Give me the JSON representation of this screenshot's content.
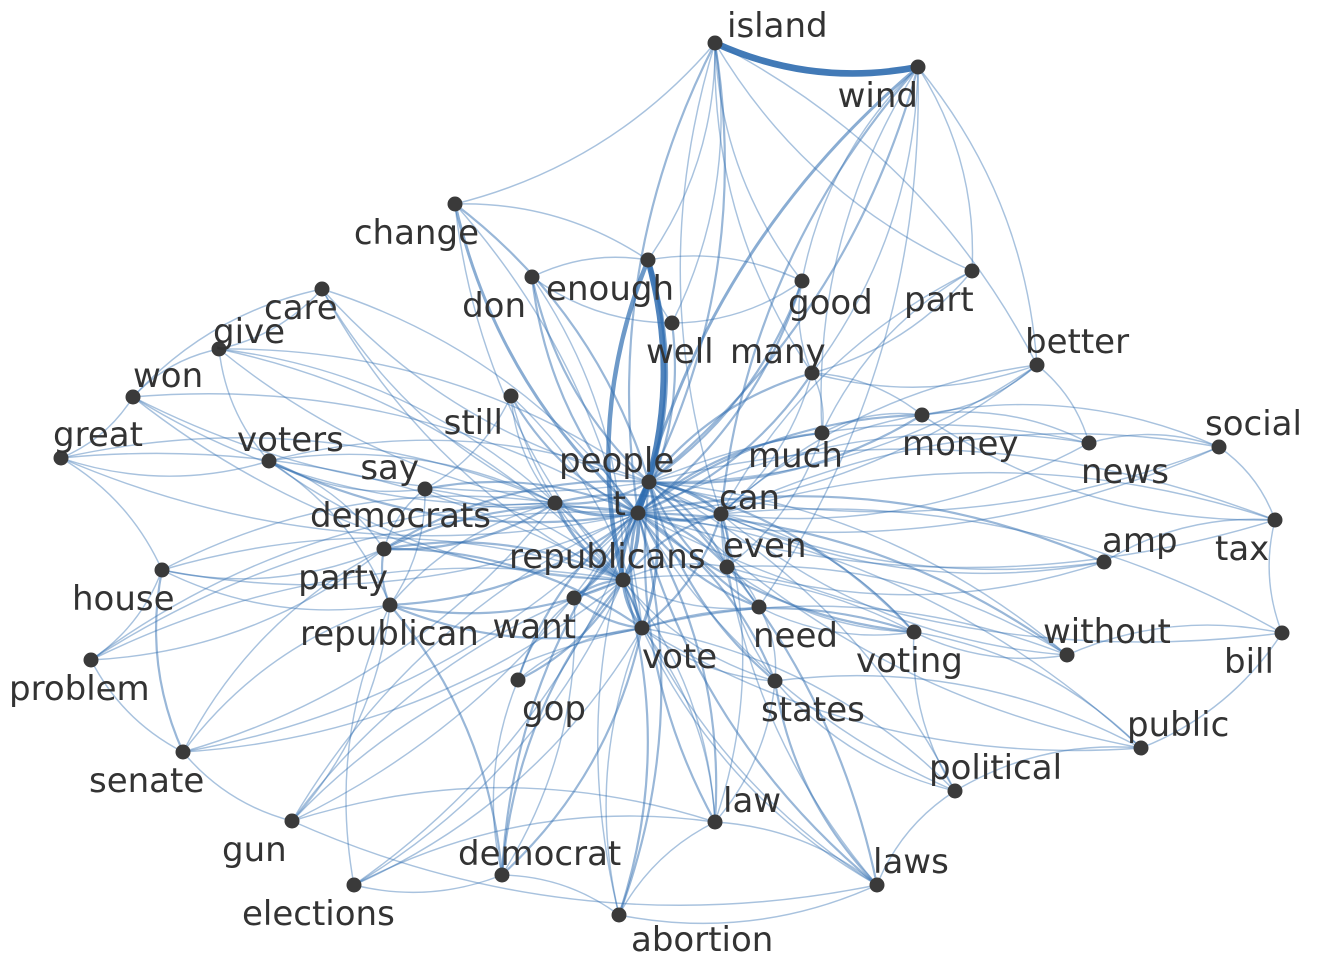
{
  "palette": {
    "edge": "#2f6db0",
    "node": "#3a3a3a",
    "label": "#333333",
    "background": "#ffffff"
  },
  "nodes": [
    {
      "id": "island",
      "label": "island"
    },
    {
      "id": "wind",
      "label": "wind"
    },
    {
      "id": "change",
      "label": "change"
    },
    {
      "id": "enough",
      "label": "enough"
    },
    {
      "id": "don",
      "label": "don"
    },
    {
      "id": "good",
      "label": "good"
    },
    {
      "id": "part",
      "label": "part"
    },
    {
      "id": "care",
      "label": "care"
    },
    {
      "id": "well",
      "label": "well"
    },
    {
      "id": "give",
      "label": "give"
    },
    {
      "id": "many",
      "label": "many"
    },
    {
      "id": "better",
      "label": "better"
    },
    {
      "id": "won",
      "label": "won"
    },
    {
      "id": "still",
      "label": "still"
    },
    {
      "id": "money",
      "label": "money"
    },
    {
      "id": "social",
      "label": "social"
    },
    {
      "id": "great",
      "label": "great"
    },
    {
      "id": "voters",
      "label": "voters"
    },
    {
      "id": "much",
      "label": "much"
    },
    {
      "id": "news",
      "label": "news"
    },
    {
      "id": "say",
      "label": "say"
    },
    {
      "id": "people",
      "label": "people"
    },
    {
      "id": "democrats",
      "label": "democrats"
    },
    {
      "id": "t",
      "label": "t"
    },
    {
      "id": "can",
      "label": "can"
    },
    {
      "id": "tax",
      "label": "tax"
    },
    {
      "id": "amp",
      "label": "amp"
    },
    {
      "id": "even",
      "label": "even"
    },
    {
      "id": "party",
      "label": "party"
    },
    {
      "id": "republicans",
      "label": "republicans"
    },
    {
      "id": "house",
      "label": "house"
    },
    {
      "id": "republican",
      "label": "republican"
    },
    {
      "id": "want",
      "label": "want"
    },
    {
      "id": "need",
      "label": "need"
    },
    {
      "id": "voting",
      "label": "voting"
    },
    {
      "id": "without",
      "label": "without"
    },
    {
      "id": "bill",
      "label": "bill"
    },
    {
      "id": "vote",
      "label": "vote"
    },
    {
      "id": "problem",
      "label": "problem"
    },
    {
      "id": "gop",
      "label": "gop"
    },
    {
      "id": "states",
      "label": "states"
    },
    {
      "id": "public",
      "label": "public"
    },
    {
      "id": "political",
      "label": "political"
    },
    {
      "id": "senate",
      "label": "senate"
    },
    {
      "id": "law",
      "label": "law"
    },
    {
      "id": "gun",
      "label": "gun"
    },
    {
      "id": "democrat",
      "label": "democrat"
    },
    {
      "id": "laws",
      "label": "laws"
    },
    {
      "id": "elections",
      "label": "elections"
    },
    {
      "id": "abortion",
      "label": "abortion"
    }
  ],
  "edges": [
    {
      "s": "island",
      "t": "wind",
      "w": 8
    },
    {
      "s": "enough",
      "t": "t",
      "w": 7
    },
    {
      "s": "enough",
      "t": "republicans",
      "w": 5
    },
    {
      "s": "enough",
      "t": "people",
      "w": 4
    },
    {
      "s": "change",
      "t": "t",
      "w": 3
    },
    {
      "s": "change",
      "t": "people",
      "w": 2
    },
    {
      "s": "wind",
      "t": "t",
      "w": 3
    },
    {
      "s": "wind",
      "t": "people",
      "w": 2
    },
    {
      "s": "island",
      "t": "t",
      "w": 2
    },
    {
      "s": "island",
      "t": "people",
      "w": 2
    },
    {
      "s": "island",
      "t": "part",
      "w": 1
    },
    {
      "s": "wind",
      "t": "part",
      "w": 1
    },
    {
      "s": "people",
      "t": "t",
      "w": 4
    },
    {
      "s": "people",
      "t": "can",
      "w": 3
    },
    {
      "s": "t",
      "t": "can",
      "w": 3
    },
    {
      "s": "t",
      "t": "republicans",
      "w": 4
    },
    {
      "s": "t",
      "t": "vote",
      "w": 3
    },
    {
      "s": "people",
      "t": "vote",
      "w": 3
    },
    {
      "s": "republicans",
      "t": "vote",
      "w": 3
    },
    {
      "s": "t",
      "t": "democrats",
      "w": 3
    },
    {
      "s": "t",
      "t": "party",
      "w": 2
    },
    {
      "s": "t",
      "t": "republican",
      "w": 2
    },
    {
      "s": "democrats",
      "t": "republicans",
      "w": 3
    },
    {
      "s": "t",
      "t": "even",
      "w": 2
    },
    {
      "s": "t",
      "t": "need",
      "w": 2
    },
    {
      "s": "t",
      "t": "want",
      "w": 2
    },
    {
      "s": "t",
      "t": "gop",
      "w": 2
    },
    {
      "s": "t",
      "t": "states",
      "w": 2
    },
    {
      "s": "t",
      "t": "voting",
      "w": 2
    },
    {
      "s": "t",
      "t": "much",
      "w": 2
    },
    {
      "s": "t",
      "t": "many",
      "w": 2
    },
    {
      "s": "t",
      "t": "money",
      "w": 2
    },
    {
      "s": "t",
      "t": "well",
      "w": 2
    },
    {
      "s": "t",
      "t": "don",
      "w": 2
    },
    {
      "s": "t",
      "t": "good",
      "w": 2
    },
    {
      "s": "t",
      "t": "still",
      "w": 2
    },
    {
      "s": "t",
      "t": "say",
      "w": 2
    },
    {
      "s": "t",
      "t": "voters",
      "w": 2
    },
    {
      "s": "t",
      "t": "care",
      "w": 1
    },
    {
      "s": "t",
      "t": "give",
      "w": 1
    },
    {
      "s": "t",
      "t": "won",
      "w": 1
    },
    {
      "s": "t",
      "t": "great",
      "w": 1
    },
    {
      "s": "t",
      "t": "better",
      "w": 1
    },
    {
      "s": "t",
      "t": "news",
      "w": 1
    },
    {
      "s": "t",
      "t": "social",
      "w": 1
    },
    {
      "s": "t",
      "t": "amp",
      "w": 2
    },
    {
      "s": "t",
      "t": "tax",
      "w": 1
    },
    {
      "s": "t",
      "t": "without",
      "w": 2
    },
    {
      "s": "t",
      "t": "bill",
      "w": 1
    },
    {
      "s": "t",
      "t": "public",
      "w": 1
    },
    {
      "s": "t",
      "t": "political",
      "w": 1
    },
    {
      "s": "t",
      "t": "law",
      "w": 2
    },
    {
      "s": "t",
      "t": "laws",
      "w": 2
    },
    {
      "s": "t",
      "t": "abortion",
      "w": 2
    },
    {
      "s": "t",
      "t": "democrat",
      "w": 2
    },
    {
      "s": "t",
      "t": "elections",
      "w": 1
    },
    {
      "s": "t",
      "t": "gun",
      "w": 1
    },
    {
      "s": "t",
      "t": "senate",
      "w": 1
    },
    {
      "s": "t",
      "t": "problem",
      "w": 1
    },
    {
      "s": "t",
      "t": "house",
      "w": 1
    },
    {
      "s": "people",
      "t": "republicans",
      "w": 3
    },
    {
      "s": "people",
      "t": "democrats",
      "w": 2
    },
    {
      "s": "people",
      "t": "party",
      "w": 2
    },
    {
      "s": "people",
      "t": "even",
      "w": 2
    },
    {
      "s": "people",
      "t": "need",
      "w": 2
    },
    {
      "s": "people",
      "t": "want",
      "w": 2
    },
    {
      "s": "people",
      "t": "states",
      "w": 2
    },
    {
      "s": "people",
      "t": "voting",
      "w": 2
    },
    {
      "s": "people",
      "t": "money",
      "w": 2
    },
    {
      "s": "people",
      "t": "many",
      "w": 2
    },
    {
      "s": "people",
      "t": "good",
      "w": 2
    },
    {
      "s": "people",
      "t": "don",
      "w": 2
    },
    {
      "s": "people",
      "t": "law",
      "w": 2
    },
    {
      "s": "people",
      "t": "laws",
      "w": 2
    },
    {
      "s": "people",
      "t": "abortion",
      "w": 1
    },
    {
      "s": "people",
      "t": "gun",
      "w": 1
    },
    {
      "s": "people",
      "t": "voters",
      "w": 1
    },
    {
      "s": "people",
      "t": "care",
      "w": 1
    },
    {
      "s": "people",
      "t": "give",
      "w": 1
    },
    {
      "s": "people",
      "t": "won",
      "w": 1
    },
    {
      "s": "people",
      "t": "amp",
      "w": 1
    },
    {
      "s": "people",
      "t": "without",
      "w": 1
    },
    {
      "s": "people",
      "t": "public",
      "w": 1
    },
    {
      "s": "people",
      "t": "political",
      "w": 1
    },
    {
      "s": "people",
      "t": "better",
      "w": 1
    },
    {
      "s": "people",
      "t": "news",
      "w": 1
    },
    {
      "s": "people",
      "t": "social",
      "w": 1
    },
    {
      "s": "people",
      "t": "tax",
      "w": 1
    },
    {
      "s": "can",
      "t": "republicans",
      "w": 2
    },
    {
      "s": "can",
      "t": "vote",
      "w": 2
    },
    {
      "s": "can",
      "t": "democrats",
      "w": 2
    },
    {
      "s": "can",
      "t": "even",
      "w": 2
    },
    {
      "s": "can",
      "t": "need",
      "w": 1
    },
    {
      "s": "can",
      "t": "voting",
      "w": 1
    },
    {
      "s": "can",
      "t": "states",
      "w": 1
    },
    {
      "s": "can",
      "t": "money",
      "w": 1
    },
    {
      "s": "can",
      "t": "many",
      "w": 1
    },
    {
      "s": "can",
      "t": "better",
      "w": 1
    },
    {
      "s": "can",
      "t": "news",
      "w": 1
    },
    {
      "s": "can",
      "t": "social",
      "w": 1
    },
    {
      "s": "can",
      "t": "amp",
      "w": 1
    },
    {
      "s": "can",
      "t": "tax",
      "w": 1
    },
    {
      "s": "can",
      "t": "without",
      "w": 1
    },
    {
      "s": "can",
      "t": "bill",
      "w": 1
    },
    {
      "s": "can",
      "t": "laws",
      "w": 1
    },
    {
      "s": "can",
      "t": "law",
      "w": 1
    },
    {
      "s": "republicans",
      "t": "party",
      "w": 2
    },
    {
      "s": "republicans",
      "t": "republican",
      "w": 2
    },
    {
      "s": "republicans",
      "t": "want",
      "w": 2
    },
    {
      "s": "republicans",
      "t": "gop",
      "w": 2
    },
    {
      "s": "republicans",
      "t": "democrat",
      "w": 2
    },
    {
      "s": "republicans",
      "t": "abortion",
      "w": 2
    },
    {
      "s": "republicans",
      "t": "states",
      "w": 1
    },
    {
      "s": "republicans",
      "t": "voting",
      "w": 1
    },
    {
      "s": "republicans",
      "t": "need",
      "w": 1
    },
    {
      "s": "republicans",
      "t": "even",
      "w": 1
    },
    {
      "s": "republicans",
      "t": "house",
      "w": 1
    },
    {
      "s": "republicans",
      "t": "senate",
      "w": 1
    },
    {
      "s": "republicans",
      "t": "gun",
      "w": 1
    },
    {
      "s": "republicans",
      "t": "elections",
      "w": 1
    },
    {
      "s": "republicans",
      "t": "problem",
      "w": 1
    },
    {
      "s": "republicans",
      "t": "voters",
      "w": 1
    },
    {
      "s": "republicans",
      "t": "say",
      "w": 1
    },
    {
      "s": "republicans",
      "t": "still",
      "w": 1
    },
    {
      "s": "republicans",
      "t": "don",
      "w": 1
    },
    {
      "s": "republicans",
      "t": "care",
      "w": 1
    },
    {
      "s": "republicans",
      "t": "give",
      "w": 1
    },
    {
      "s": "republicans",
      "t": "won",
      "w": 1
    },
    {
      "s": "republicans",
      "t": "great",
      "w": 1
    },
    {
      "s": "republicans",
      "t": "law",
      "w": 1
    },
    {
      "s": "republicans",
      "t": "laws",
      "w": 1
    },
    {
      "s": "democrats",
      "t": "party",
      "w": 2
    },
    {
      "s": "democrats",
      "t": "republican",
      "w": 1
    },
    {
      "s": "democrats",
      "t": "vote",
      "w": 2
    },
    {
      "s": "democrats",
      "t": "voters",
      "w": 1
    },
    {
      "s": "democrats",
      "t": "say",
      "w": 1
    },
    {
      "s": "democrats",
      "t": "house",
      "w": 1
    },
    {
      "s": "democrats",
      "t": "senate",
      "w": 1
    },
    {
      "s": "democrats",
      "t": "give",
      "w": 1
    },
    {
      "s": "democrats",
      "t": "won",
      "w": 1
    },
    {
      "s": "democrats",
      "t": "great",
      "w": 1
    },
    {
      "s": "democrats",
      "t": "care",
      "w": 1
    },
    {
      "s": "democrats",
      "t": "problem",
      "w": 1
    },
    {
      "s": "vote",
      "t": "voting",
      "w": 2
    },
    {
      "s": "vote",
      "t": "states",
      "w": 1
    },
    {
      "s": "vote",
      "t": "want",
      "w": 2
    },
    {
      "s": "vote",
      "t": "party",
      "w": 2
    },
    {
      "s": "vote",
      "t": "republican",
      "w": 2
    },
    {
      "s": "vote",
      "t": "gop",
      "w": 1
    },
    {
      "s": "vote",
      "t": "democrat",
      "w": 2
    },
    {
      "s": "vote",
      "t": "abortion",
      "w": 1
    },
    {
      "s": "vote",
      "t": "law",
      "w": 1
    },
    {
      "s": "vote",
      "t": "laws",
      "w": 1
    },
    {
      "s": "vote",
      "t": "elections",
      "w": 1
    },
    {
      "s": "vote",
      "t": "gun",
      "w": 1
    },
    {
      "s": "vote",
      "t": "without",
      "w": 1
    },
    {
      "s": "vote",
      "t": "public",
      "w": 1
    },
    {
      "s": "vote",
      "t": "political",
      "w": 1
    },
    {
      "s": "party",
      "t": "republican",
      "w": 2
    },
    {
      "s": "party",
      "t": "house",
      "w": 1
    },
    {
      "s": "party",
      "t": "senate",
      "w": 1
    },
    {
      "s": "party",
      "t": "problem",
      "w": 1
    },
    {
      "s": "party",
      "t": "voters",
      "w": 1
    },
    {
      "s": "republican",
      "t": "democrat",
      "w": 2
    },
    {
      "s": "republican",
      "t": "senate",
      "w": 1
    },
    {
      "s": "republican",
      "t": "gun",
      "w": 1
    },
    {
      "s": "republican",
      "t": "elections",
      "w": 1
    },
    {
      "s": "republican",
      "t": "house",
      "w": 1
    },
    {
      "s": "want",
      "t": "gop",
      "w": 1
    },
    {
      "s": "want",
      "t": "democrat",
      "w": 1
    },
    {
      "s": "gop",
      "t": "democrat",
      "w": 1
    },
    {
      "s": "even",
      "t": "need",
      "w": 1
    },
    {
      "s": "even",
      "t": "amp",
      "w": 1
    },
    {
      "s": "even",
      "t": "without",
      "w": 1
    },
    {
      "s": "need",
      "t": "voting",
      "w": 1
    },
    {
      "s": "need",
      "t": "states",
      "w": 1
    },
    {
      "s": "states",
      "t": "laws",
      "w": 2
    },
    {
      "s": "states",
      "t": "law",
      "w": 1
    },
    {
      "s": "states",
      "t": "political",
      "w": 1
    },
    {
      "s": "states",
      "t": "public",
      "w": 1
    },
    {
      "s": "voting",
      "t": "without",
      "w": 1
    },
    {
      "s": "voting",
      "t": "public",
      "w": 1
    },
    {
      "s": "voting",
      "t": "political",
      "w": 1
    },
    {
      "s": "law",
      "t": "laws",
      "w": 1
    },
    {
      "s": "house",
      "t": "senate",
      "w": 2
    },
    {
      "s": "house",
      "t": "problem",
      "w": 1
    },
    {
      "s": "voters",
      "t": "say",
      "w": 1
    },
    {
      "s": "voters",
      "t": "republican",
      "w": 1
    },
    {
      "s": "money",
      "t": "many",
      "w": 1
    },
    {
      "s": "money",
      "t": "news",
      "w": 1
    },
    {
      "s": "money",
      "t": "better",
      "w": 1
    },
    {
      "s": "money",
      "t": "social",
      "w": 1
    },
    {
      "s": "money",
      "t": "tax",
      "w": 1
    },
    {
      "s": "much",
      "t": "money",
      "w": 1
    },
    {
      "s": "much",
      "t": "many",
      "w": 1
    },
    {
      "s": "news",
      "t": "social",
      "w": 1
    },
    {
      "s": "news",
      "t": "better",
      "w": 1
    },
    {
      "s": "amp",
      "t": "tax",
      "w": 1
    },
    {
      "s": "tax",
      "t": "bill",
      "w": 1
    },
    {
      "s": "social",
      "t": "tax",
      "w": 1
    },
    {
      "s": "good",
      "t": "many",
      "w": 1
    },
    {
      "s": "good",
      "t": "well",
      "w": 1
    },
    {
      "s": "good",
      "t": "enough",
      "w": 1
    },
    {
      "s": "don",
      "t": "enough",
      "w": 1
    },
    {
      "s": "don",
      "t": "well",
      "w": 1
    },
    {
      "s": "care",
      "t": "give",
      "w": 1
    },
    {
      "s": "give",
      "t": "won",
      "w": 1
    },
    {
      "s": "won",
      "t": "great",
      "w": 1
    },
    {
      "s": "care",
      "t": "won",
      "w": 1
    },
    {
      "s": "island",
      "t": "enough",
      "w": 1
    },
    {
      "s": "island",
      "t": "good",
      "w": 1
    },
    {
      "s": "island",
      "t": "well",
      "w": 1
    },
    {
      "s": "island",
      "t": "many",
      "w": 1
    },
    {
      "s": "island",
      "t": "change",
      "w": 1
    },
    {
      "s": "island",
      "t": "can",
      "w": 1
    },
    {
      "s": "island",
      "t": "better",
      "w": 1
    },
    {
      "s": "wind",
      "t": "can",
      "w": 2
    },
    {
      "s": "wind",
      "t": "many",
      "w": 1
    },
    {
      "s": "wind",
      "t": "much",
      "w": 1
    },
    {
      "s": "wind",
      "t": "better",
      "w": 1
    },
    {
      "s": "wind",
      "t": "good",
      "w": 1
    },
    {
      "s": "wind",
      "t": "need",
      "w": 1
    },
    {
      "s": "part",
      "t": "can",
      "w": 1
    },
    {
      "s": "part",
      "t": "many",
      "w": 1
    },
    {
      "s": "part",
      "t": "much",
      "w": 1
    },
    {
      "s": "change",
      "t": "enough",
      "w": 1
    },
    {
      "s": "change",
      "t": "republicans",
      "w": 1
    },
    {
      "s": "change",
      "t": "vote",
      "w": 1
    },
    {
      "s": "abortion",
      "t": "laws",
      "w": 1
    },
    {
      "s": "abortion",
      "t": "law",
      "w": 1
    },
    {
      "s": "abortion",
      "t": "democrat",
      "w": 1
    },
    {
      "s": "gun",
      "t": "law",
      "w": 1
    },
    {
      "s": "gun",
      "t": "laws",
      "w": 1
    },
    {
      "s": "elections",
      "t": "law",
      "w": 1
    },
    {
      "s": "elections",
      "t": "democrat",
      "w": 1
    },
    {
      "s": "laws",
      "t": "political",
      "w": 1
    },
    {
      "s": "public",
      "t": "political",
      "w": 1
    },
    {
      "s": "without",
      "t": "bill",
      "w": 1
    },
    {
      "s": "public",
      "t": "bill",
      "w": 1
    },
    {
      "s": "still",
      "t": "say",
      "w": 1
    },
    {
      "s": "still",
      "t": "democrats",
      "w": 1
    },
    {
      "s": "still",
      "t": "vote",
      "w": 1
    },
    {
      "s": "say",
      "t": "party",
      "w": 1
    },
    {
      "s": "say",
      "t": "republican",
      "w": 1
    },
    {
      "s": "great",
      "t": "voters",
      "w": 1
    },
    {
      "s": "great",
      "t": "house",
      "w": 1
    },
    {
      "s": "give",
      "t": "voters",
      "w": 1
    },
    {
      "s": "senate",
      "t": "problem",
      "w": 1
    },
    {
      "s": "senate",
      "t": "gun",
      "w": 1
    },
    {
      "s": "well",
      "t": "enough",
      "w": 1
    },
    {
      "s": "many",
      "t": "better",
      "w": 1
    },
    {
      "s": "much",
      "t": "even",
      "w": 1
    },
    {
      "s": "even",
      "t": "voting",
      "w": 1
    }
  ]
}
